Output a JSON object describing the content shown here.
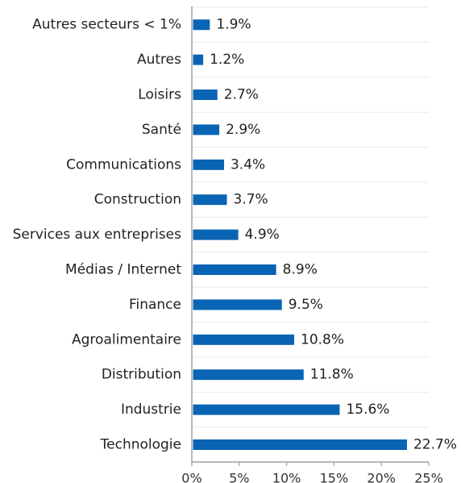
{
  "chart_data": {
    "type": "bar",
    "orientation": "horizontal",
    "categories": [
      "Autres secteurs < 1%",
      "Autres",
      "Loisirs",
      "Santé",
      "Communications",
      "Construction",
      "Services aux entreprises",
      "Médias / Internet",
      "Finance",
      "Agroalimentaire",
      "Distribution",
      "Industrie",
      "Technologie"
    ],
    "values": [
      1.9,
      1.2,
      2.7,
      2.9,
      3.4,
      3.7,
      4.9,
      8.9,
      9.5,
      10.8,
      11.8,
      15.6,
      22.7
    ],
    "value_labels": [
      "1.9%",
      "1.2%",
      "2.7%",
      "2.9%",
      "3.4%",
      "3.7%",
      "4.9%",
      "8.9%",
      "9.5%",
      "10.8%",
      "11.8%",
      "15.6%",
      "22.7%"
    ],
    "xlim": [
      0,
      25
    ],
    "x_ticks": [
      0,
      5,
      10,
      15,
      20,
      25
    ],
    "x_tick_labels": [
      "0%",
      "5%",
      "10%",
      "15%",
      "20%",
      "25%"
    ],
    "grid": "horizontal",
    "bar_color": "#0a64b4",
    "grid_color": "#e8e8e8",
    "axis_color": "#a0a0a0",
    "title": "",
    "xlabel": "",
    "ylabel": ""
  }
}
